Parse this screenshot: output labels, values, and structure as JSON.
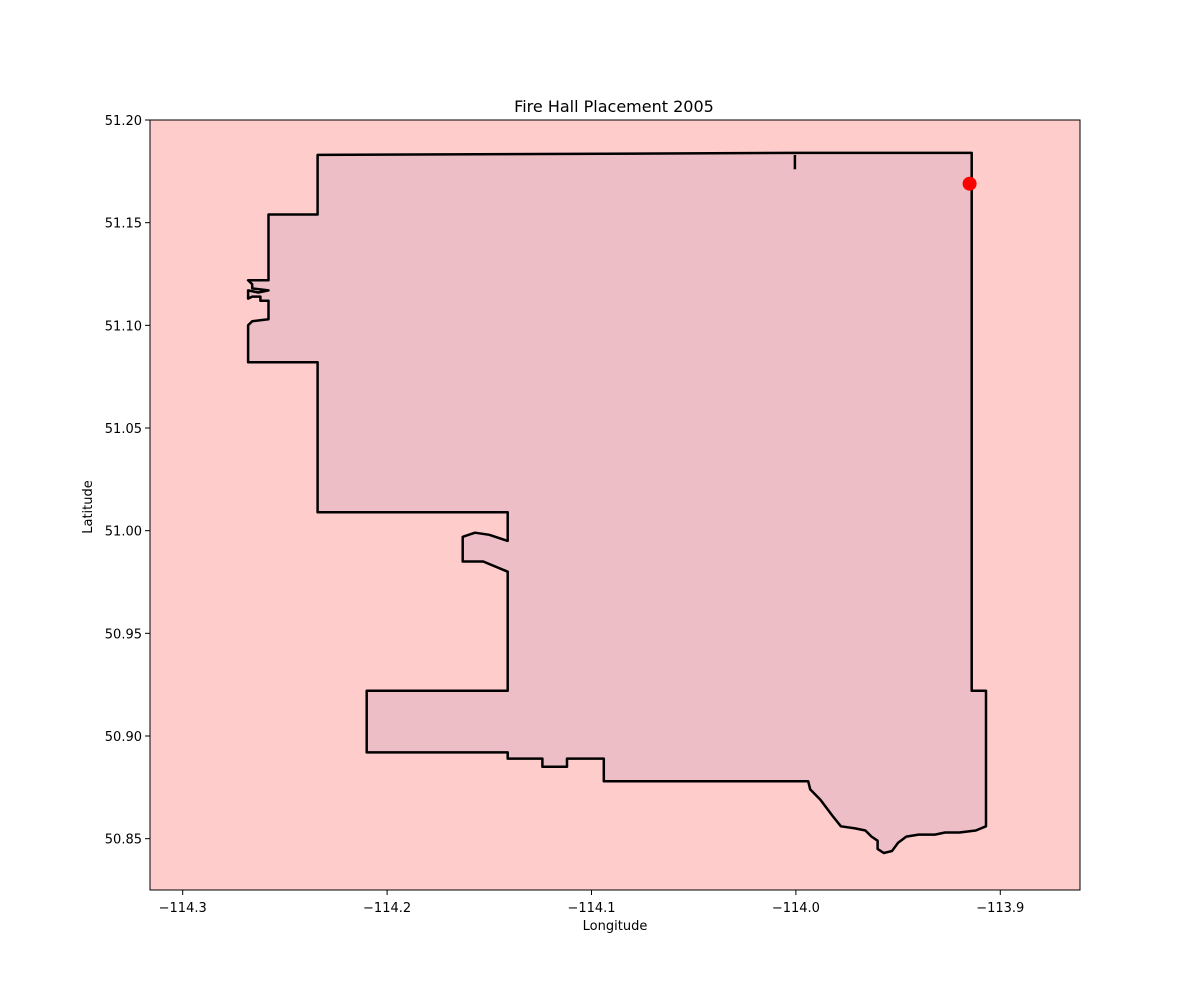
{
  "chart_data": {
    "type": "map",
    "title": "Fire Hall Placement 2005",
    "xlabel": "Longitude",
    "ylabel": "Latitude",
    "xlim": [
      -114.316,
      -113.861
    ],
    "ylim": [
      50.825,
      51.2
    ],
    "x_ticks": [
      -114.3,
      -114.2,
      -114.1,
      -114.0,
      -113.9
    ],
    "x_tick_labels": [
      "−114.3",
      "−114.2",
      "−114.1",
      "−114.0",
      "−113.9"
    ],
    "y_ticks": [
      50.85,
      50.9,
      50.95,
      51.0,
      51.05,
      51.1,
      51.15,
      51.2
    ],
    "y_tick_labels": [
      "50.85",
      "50.90",
      "50.95",
      "51.00",
      "51.05",
      "51.10",
      "51.15",
      "51.20"
    ],
    "grid": false,
    "colors": {
      "background_fill": "#ffcccc",
      "region_fill": "#eebec6",
      "boundary": "#000000",
      "point": "#ff0000"
    },
    "boundary": [
      [
        -114.234,
        51.183
      ],
      [
        -114.0,
        51.184
      ],
      [
        -113.914,
        51.184
      ],
      [
        -113.914,
        50.922
      ],
      [
        -113.907,
        50.922
      ],
      [
        -113.907,
        50.856
      ],
      [
        -113.912,
        50.854
      ],
      [
        -113.92,
        50.853
      ],
      [
        -113.927,
        50.853
      ],
      [
        -113.932,
        50.852
      ],
      [
        -113.94,
        50.852
      ],
      [
        -113.946,
        50.851
      ],
      [
        -113.95,
        50.848
      ],
      [
        -113.953,
        50.844
      ],
      [
        -113.957,
        50.843
      ],
      [
        -113.96,
        50.845
      ],
      [
        -113.96,
        50.849
      ],
      [
        -113.963,
        50.851
      ],
      [
        -113.966,
        50.854
      ],
      [
        -113.971,
        50.855
      ],
      [
        -113.978,
        50.856
      ],
      [
        -113.982,
        50.861
      ],
      [
        -113.988,
        50.869
      ],
      [
        -113.993,
        50.874
      ],
      [
        -113.994,
        50.878
      ],
      [
        -114.0,
        50.878
      ],
      [
        -114.014,
        50.878
      ],
      [
        -114.05,
        50.878
      ],
      [
        -114.094,
        50.878
      ],
      [
        -114.094,
        50.889
      ],
      [
        -114.112,
        50.889
      ],
      [
        -114.112,
        50.885
      ],
      [
        -114.124,
        50.885
      ],
      [
        -114.124,
        50.889
      ],
      [
        -114.141,
        50.889
      ],
      [
        -114.141,
        50.892
      ],
      [
        -114.21,
        50.892
      ],
      [
        -114.21,
        50.922
      ],
      [
        -114.141,
        50.922
      ],
      [
        -114.141,
        50.98
      ],
      [
        -114.153,
        50.985
      ],
      [
        -114.163,
        50.985
      ],
      [
        -114.163,
        50.997
      ],
      [
        -114.157,
        50.999
      ],
      [
        -114.15,
        50.998
      ],
      [
        -114.141,
        50.995
      ],
      [
        -114.141,
        51.009
      ],
      [
        -114.234,
        51.009
      ],
      [
        -114.234,
        51.082
      ],
      [
        -114.268,
        51.082
      ],
      [
        -114.268,
        51.1
      ],
      [
        -114.266,
        51.102
      ],
      [
        -114.258,
        51.103
      ],
      [
        -114.258,
        51.112
      ],
      [
        -114.262,
        51.112
      ],
      [
        -114.262,
        51.114
      ],
      [
        -114.266,
        51.114
      ],
      [
        -114.268,
        51.113
      ],
      [
        -114.268,
        51.117
      ],
      [
        -114.263,
        51.116
      ],
      [
        -114.258,
        51.117
      ],
      [
        -114.266,
        51.118
      ],
      [
        -114.266,
        51.12
      ],
      [
        -114.268,
        51.122
      ],
      [
        -114.258,
        51.122
      ],
      [
        -114.258,
        51.154
      ],
      [
        -114.234,
        51.154
      ],
      [
        -114.234,
        51.183
      ]
    ],
    "boundary_features": [
      [
        [
          -114.0005,
          51.183
        ],
        [
          -114.0005,
          51.176
        ]
      ]
    ],
    "points": [
      {
        "lon": -113.915,
        "lat": 51.169
      }
    ]
  }
}
